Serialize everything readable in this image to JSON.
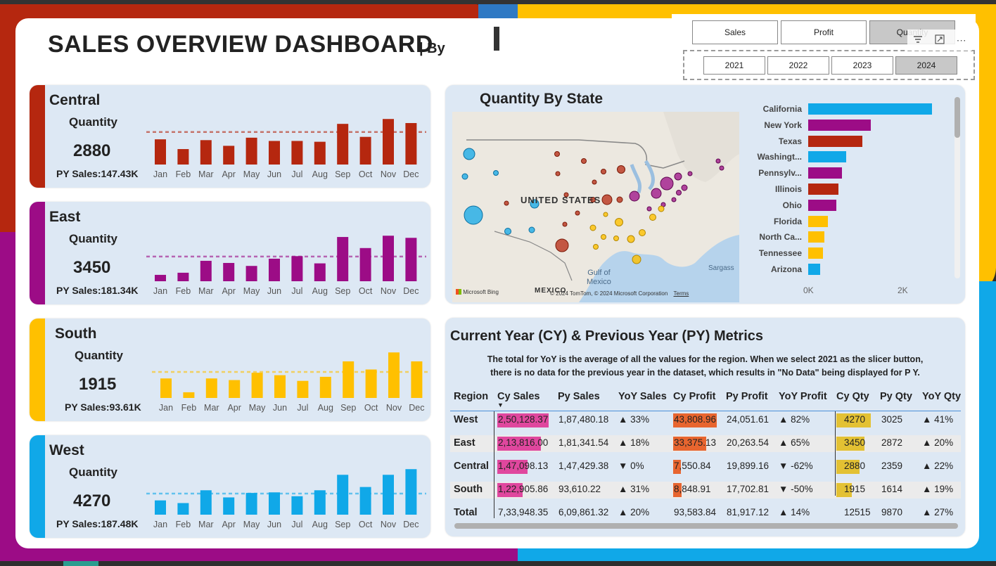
{
  "dashboard": {
    "title": "SALES OVERVIEW DASHBOARD",
    "title_suffix": "| By"
  },
  "slicers": {
    "measures": [
      {
        "label": "Sales",
        "selected": false
      },
      {
        "label": "Profit",
        "selected": false
      },
      {
        "label": "Quantity",
        "selected": true
      }
    ],
    "years": [
      {
        "label": "2021",
        "selected": false
      },
      {
        "label": "2022",
        "selected": false
      },
      {
        "label": "2023",
        "selected": false
      },
      {
        "label": "2024",
        "selected": true
      }
    ],
    "visual_header_icons": [
      "filter-icon",
      "focus-mode-icon",
      "more-options-icon"
    ]
  },
  "months": [
    "Jan",
    "Feb",
    "Mar",
    "Apr",
    "May",
    "Jun",
    "Jul",
    "Aug",
    "Sep",
    "Oct",
    "Nov",
    "Dec"
  ],
  "regions": [
    {
      "name": "Central",
      "quantity_label": "Quantity",
      "quantity": "2880",
      "py_sales": "PY Sales:147.43K",
      "color": "#b5270f",
      "monthly": [
        155,
        95,
        150,
        115,
        165,
        145,
        145,
        140,
        250,
        170,
        280,
        255
      ],
      "average": 200
    },
    {
      "name": "East",
      "quantity_label": "Quantity",
      "quantity": "3450",
      "py_sales": "PY Sales:181.34K",
      "color": "#9c0c86",
      "monthly": [
        75,
        100,
        240,
        215,
        180,
        265,
        295,
        210,
        520,
        390,
        535,
        510
      ],
      "average": 290
    },
    {
      "name": "South",
      "quantity_label": "Quantity",
      "quantity": "1915",
      "py_sales": "PY Sales:93.61K",
      "color": "#ffc000",
      "monthly": [
        120,
        35,
        120,
        110,
        155,
        140,
        105,
        130,
        225,
        175,
        280,
        225
      ],
      "average": 160
    },
    {
      "name": "West",
      "quantity_label": "Quantity",
      "quantity": "4270",
      "py_sales": "PY Sales:187.48K",
      "color": "#10a8e8",
      "monthly": [
        240,
        195,
        410,
        290,
        365,
        375,
        310,
        410,
        670,
        465,
        670,
        765
      ],
      "average": 355
    }
  ],
  "map": {
    "title": "Quantity By State",
    "country_label": "UNITED STATES",
    "gulf_label_1": "Gulf of",
    "gulf_label_2": "Mexico",
    "mexico_label": "MEXICO",
    "sargasso_label": "Sargass",
    "provider": "Microsoft Bing",
    "copyright": "© 2024 TomTom, © 2024 Microsoft Corporation",
    "terms": "Terms"
  },
  "chart_data": {
    "type": "bar",
    "title": "Quantity By State",
    "orientation": "horizontal",
    "categories": [
      "California",
      "New York",
      "Texas",
      "Washingt...",
      "Pennsylv...",
      "Illinois",
      "Ohio",
      "Florida",
      "North Ca...",
      "Tennessee",
      "Arizona"
    ],
    "values": [
      2480,
      1250,
      1090,
      760,
      680,
      600,
      570,
      400,
      320,
      290,
      240
    ],
    "colors": [
      "#10a8e8",
      "#9c0c86",
      "#b5270f",
      "#10a8e8",
      "#9c0c86",
      "#b5270f",
      "#9c0c86",
      "#ffc000",
      "#ffc000",
      "#ffc000",
      "#10a8e8"
    ],
    "xlim": [
      0,
      2600
    ],
    "x_ticks": [
      "0K",
      "2K"
    ]
  },
  "metrics": {
    "title": "Current Year (CY) & Previous Year (PY) Metrics",
    "note_line1": "The total for YoY is the average of all the values for the region. When we select 2021 as the slicer button,",
    "note_line2": "there is no data for the previous year in the dataset, which results in \"No Data\" being displayed for P Y.",
    "headers": [
      "Region",
      "Cy Sales",
      "Py Sales",
      "YoY Sales",
      "Cy Profit",
      "Py Profit",
      "YoY Profit",
      "Cy Qty",
      "Py Qty",
      "YoY Qty"
    ],
    "rows": [
      {
        "region": "West",
        "cy_sales": "2,50,128.37",
        "py_sales": "1,87,480.18",
        "yoy_sales": "▲ 33%",
        "cy_profit": "43,808.96",
        "py_profit": "24,051.61",
        "yoy_profit": "▲ 82%",
        "cy_qty": "4270",
        "py_qty": "3025",
        "yoy_qty": "▲ 41%",
        "sales_frac": 1.0,
        "profit_frac": 1.0,
        "qty_frac": 1.0
      },
      {
        "region": "East",
        "cy_sales": "2,13,816.00",
        "py_sales": "1,81,341.54",
        "yoy_sales": "▲ 18%",
        "cy_profit": "33,375.13",
        "py_profit": "20,263.54",
        "yoy_profit": "▲ 65%",
        "cy_qty": "3450",
        "py_qty": "2872",
        "yoy_qty": "▲ 20%",
        "sales_frac": 0.85,
        "profit_frac": 0.76,
        "qty_frac": 0.81
      },
      {
        "region": "Central",
        "cy_sales": "1,47,098.13",
        "py_sales": "1,47,429.38",
        "yoy_sales": "▼ 0%",
        "cy_profit": "7,550.84",
        "py_profit": "19,899.16",
        "yoy_profit": "▼ -62%",
        "cy_qty": "2880",
        "py_qty": "2359",
        "yoy_qty": "▲ 22%",
        "sales_frac": 0.59,
        "profit_frac": 0.17,
        "qty_frac": 0.67
      },
      {
        "region": "South",
        "cy_sales": "1,22,905.86",
        "py_sales": "93,610.22",
        "yoy_sales": "▲ 31%",
        "cy_profit": "8,848.91",
        "py_profit": "17,702.81",
        "yoy_profit": "▼ -50%",
        "cy_qty": "1915",
        "py_qty": "1614",
        "yoy_qty": "▲ 19%",
        "sales_frac": 0.49,
        "profit_frac": 0.2,
        "qty_frac": 0.45
      },
      {
        "region": "Total",
        "cy_sales": "7,33,948.35",
        "py_sales": "6,09,861.32",
        "yoy_sales": "▲ 20%",
        "cy_profit": "93,583.84",
        "py_profit": "81,917.12",
        "yoy_profit": "▲ 14%",
        "cy_qty": "12515",
        "py_qty": "9870",
        "yoy_qty": "▲ 27%"
      }
    ],
    "bar_colors": {
      "sales": "#e0479e",
      "profit": "#e8652f",
      "qty": "#e3c133"
    }
  }
}
